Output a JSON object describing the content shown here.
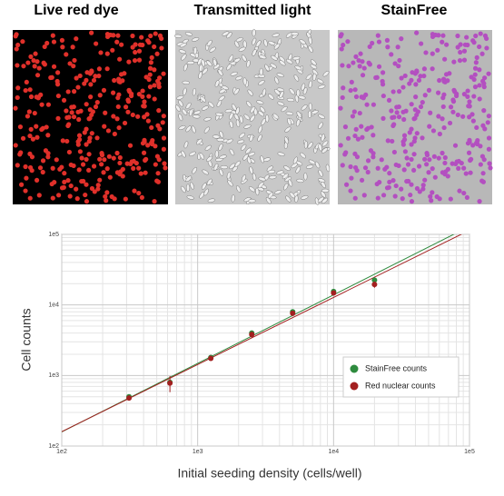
{
  "panels": {
    "titles": [
      "Live red dye",
      "Transmitted light",
      "StainFree"
    ]
  },
  "chart_data": {
    "type": "scatter",
    "x_label": "Initial seeding density (cells/well)",
    "y_label": "Cell counts",
    "log_x": true,
    "log_y": true,
    "grid": true,
    "minor_grid": true,
    "fit_lines": true,
    "legend": "lower right",
    "xlim": [
      100,
      100000
    ],
    "ylim": [
      100,
      100000
    ],
    "xticks": [
      {
        "value": 100,
        "label": "1e2"
      },
      {
        "value": 1000,
        "label": "1e3"
      },
      {
        "value": 10000,
        "label": "1e4"
      },
      {
        "value": 100000,
        "label": "1e5"
      }
    ],
    "yticks": [
      {
        "value": 100,
        "label": "1e2"
      },
      {
        "value": 1000,
        "label": "1e3"
      },
      {
        "value": 10000,
        "label": "1e4"
      },
      {
        "value": 100000,
        "label": "1e5"
      }
    ],
    "x": [
      312.5,
      625,
      1250,
      2500,
      5000,
      10000,
      20000
    ],
    "series": [
      {
        "name": "StainFree counts",
        "color": "#2e8b3e",
        "values": [
          500,
          800,
          1800,
          4000,
          8000,
          15500,
          22500
        ],
        "errors": [
          30,
          60,
          100,
          250,
          500,
          900,
          1500
        ]
      },
      {
        "name": "Red nuclear counts",
        "color": "#a32020",
        "values": [
          480,
          780,
          1750,
          3800,
          7600,
          14800,
          19500
        ],
        "errors": [
          40,
          200,
          120,
          400,
          600,
          800,
          2000
        ]
      }
    ]
  }
}
